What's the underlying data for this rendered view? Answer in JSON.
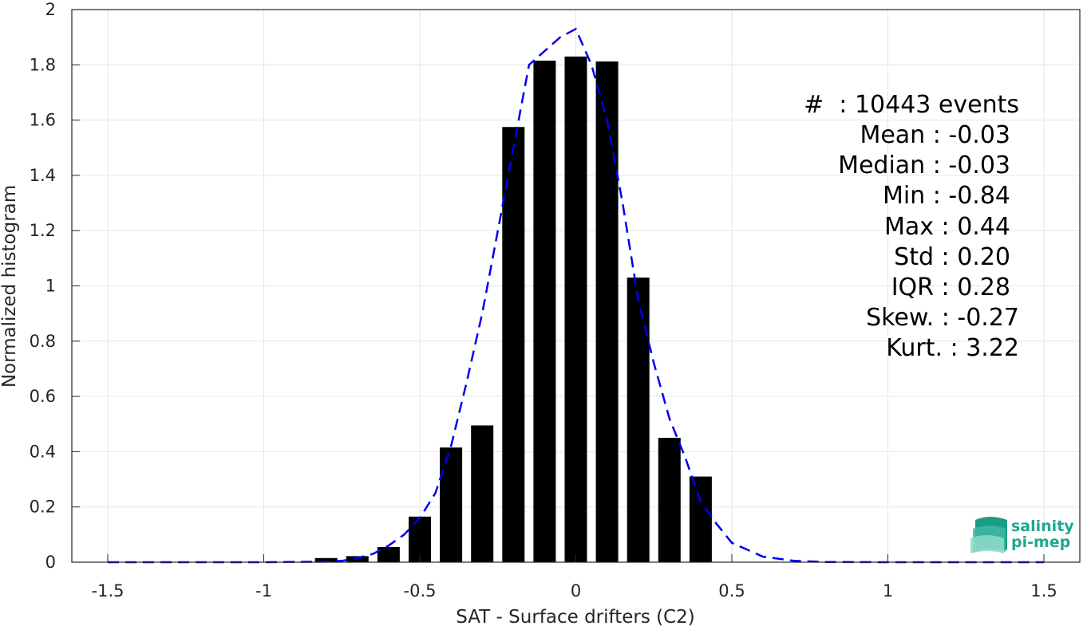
{
  "chart_data": {
    "type": "bar",
    "xlabel": "SAT - Surface drifters (C2)",
    "ylabel": "Normalized histogram",
    "xlim": [
      -1.5,
      1.5
    ],
    "ylim": [
      0,
      2
    ],
    "grid": true,
    "x_ticks": [
      "-1.5",
      "-1",
      "-0.5",
      "0",
      "0.5",
      "1",
      "1.5"
    ],
    "y_ticks": [
      "0",
      "0.2",
      "0.4",
      "0.6",
      "0.8",
      "1",
      "1.2",
      "1.4",
      "1.6",
      "1.8",
      "2"
    ],
    "bars": {
      "x": [
        -0.8,
        -0.7,
        -0.6,
        -0.5,
        -0.4,
        -0.3,
        -0.2,
        -0.1,
        0.0,
        0.1,
        0.2,
        0.3,
        0.4
      ],
      "values": [
        0.015,
        0.022,
        0.055,
        0.165,
        0.415,
        0.495,
        1.575,
        1.815,
        1.83,
        1.812,
        1.03,
        0.45,
        0.31
      ],
      "color": "#000000"
    },
    "fit_curve": {
      "style": "dashed",
      "color": "#0000ee",
      "x": [
        -1.5,
        -1.0,
        -0.8,
        -0.75,
        -0.7,
        -0.65,
        -0.6,
        -0.55,
        -0.5,
        -0.45,
        -0.4,
        -0.35,
        -0.3,
        -0.25,
        -0.2,
        -0.15,
        -0.1,
        -0.05,
        0.0,
        0.05,
        0.1,
        0.15,
        0.2,
        0.25,
        0.3,
        0.35,
        0.4,
        0.45,
        0.5,
        0.6,
        0.7,
        0.8,
        1.0,
        1.5
      ],
      "y": [
        0.0,
        0.0,
        0.002,
        0.005,
        0.015,
        0.03,
        0.06,
        0.1,
        0.16,
        0.25,
        0.42,
        0.65,
        0.9,
        1.2,
        1.5,
        1.8,
        1.85,
        1.9,
        1.93,
        1.8,
        1.6,
        1.3,
        0.95,
        0.72,
        0.52,
        0.38,
        0.22,
        0.14,
        0.07,
        0.02,
        0.005,
        0.001,
        0.0,
        0.0
      ]
    },
    "stats": {
      "count": "#  : 10443 events",
      "mean": "Mean : -0.03",
      "median": "Median : -0.03",
      "min": "Min : -0.84",
      "max": "Max : 0.44",
      "std": "Std : 0.20",
      "iqr": "IQR : 0.28",
      "skew": "Skew. : -0.27",
      "kurt": "Kurt. : 3.22"
    }
  },
  "logo": {
    "line1": "salinity",
    "line2": "pi-mep",
    "color": "#1fa88f"
  }
}
